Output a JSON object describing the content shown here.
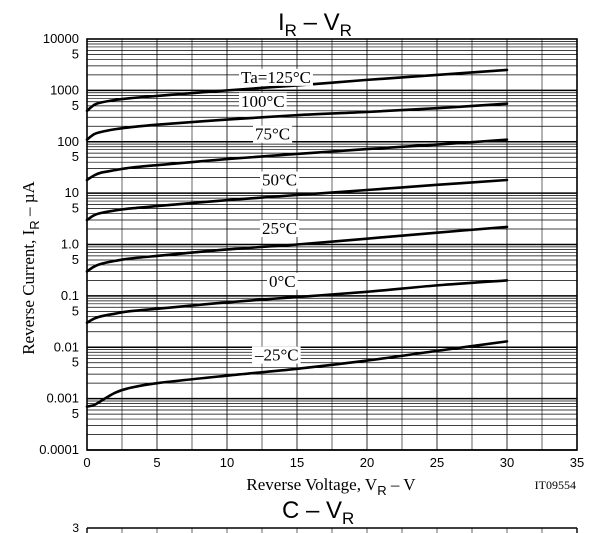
{
  "chart_data": [
    {
      "type": "line",
      "title": {
        "main": "I",
        "sub": "R",
        "sep": " – ",
        "main2": "V",
        "sub2": "R"
      },
      "xlabel": {
        "pre": "Reverse Voltage, V",
        "sub": "R",
        "post": " –  V"
      },
      "ylabel": {
        "pre": "Reverse Current, I",
        "sub": "R",
        "post": " –  µA"
      },
      "code": "IT09554",
      "xlim": [
        0,
        35
      ],
      "ylim": [
        0.0001,
        10000
      ],
      "yscale": "log",
      "grid": true,
      "x_ticks": [
        "0",
        "5",
        "10",
        "15",
        "20",
        "25",
        "30",
        "35"
      ],
      "y_ticks_major": [
        {
          "value": 10000,
          "label": "10000"
        },
        {
          "value": 1000,
          "label": "1000"
        },
        {
          "value": 100,
          "label": "100"
        },
        {
          "value": 10,
          "label": "10"
        },
        {
          "value": 1,
          "label": "1.0"
        },
        {
          "value": 0.1,
          "label": "0.1"
        },
        {
          "value": 0.01,
          "label": "0.01"
        },
        {
          "value": 0.001,
          "label": "0.001"
        },
        {
          "value": 0.0001,
          "label": "0.0001"
        }
      ],
      "y_ticks_minor_label": "5",
      "series": [
        {
          "name": "Ta=125°C",
          "label_x": 11,
          "label_y": 1400,
          "x": [
            0,
            0.5,
            1,
            2,
            3,
            5,
            10,
            15,
            20,
            25,
            30
          ],
          "y": [
            400,
            520,
            580,
            650,
            700,
            780,
            1000,
            1250,
            1600,
            2000,
            2500
          ]
        },
        {
          "name": "100°C",
          "label_x": 11,
          "label_y": 480,
          "x": [
            0,
            0.5,
            1,
            2,
            3,
            5,
            10,
            15,
            20,
            25,
            30
          ],
          "y": [
            110,
            140,
            155,
            175,
            190,
            215,
            270,
            330,
            380,
            450,
            550
          ]
        },
        {
          "name": "75°C",
          "label_x": 12,
          "label_y": 110,
          "x": [
            0,
            0.5,
            1,
            2,
            3,
            5,
            10,
            15,
            20,
            25,
            30
          ],
          "y": [
            18,
            22,
            25,
            28,
            31,
            35,
            46,
            58,
            72,
            88,
            110
          ]
        },
        {
          "name": "50°C",
          "label_x": 12.5,
          "label_y": 14,
          "x": [
            0,
            0.5,
            1,
            2,
            3,
            5,
            10,
            15,
            20,
            25,
            30
          ],
          "y": [
            3,
            3.7,
            4.1,
            4.6,
            5.0,
            5.6,
            7.3,
            9.2,
            11.5,
            14.5,
            18
          ]
        },
        {
          "name": "25°C",
          "label_x": 12.5,
          "label_y": 1.6,
          "x": [
            0,
            0.5,
            1,
            2,
            3,
            5,
            10,
            15,
            20,
            25,
            30
          ],
          "y": [
            0.3,
            0.37,
            0.42,
            0.48,
            0.53,
            0.6,
            0.8,
            1.0,
            1.3,
            1.7,
            2.2
          ]
        },
        {
          "name": "0°C",
          "label_x": 13,
          "label_y": 0.15,
          "x": [
            0,
            0.5,
            1,
            2,
            3,
            5,
            10,
            15,
            20,
            25,
            30
          ],
          "y": [
            0.03,
            0.036,
            0.04,
            0.045,
            0.05,
            0.056,
            0.075,
            0.095,
            0.12,
            0.16,
            0.2
          ]
        },
        {
          "name": "–25°C",
          "label_x": 12,
          "label_y": 0.0055,
          "x": [
            0,
            0.5,
            1,
            2,
            3,
            5,
            10,
            15,
            20,
            25,
            30
          ],
          "y": [
            0.0007,
            0.00075,
            0.0009,
            0.0013,
            0.0016,
            0.002,
            0.0028,
            0.0038,
            0.0055,
            0.0085,
            0.013
          ]
        }
      ]
    },
    {
      "type": "line",
      "title": {
        "main": "C",
        "sep": " – ",
        "main2": "V",
        "sub2": "R"
      },
      "y_ticks_visible": [
        "3"
      ],
      "series": []
    }
  ]
}
